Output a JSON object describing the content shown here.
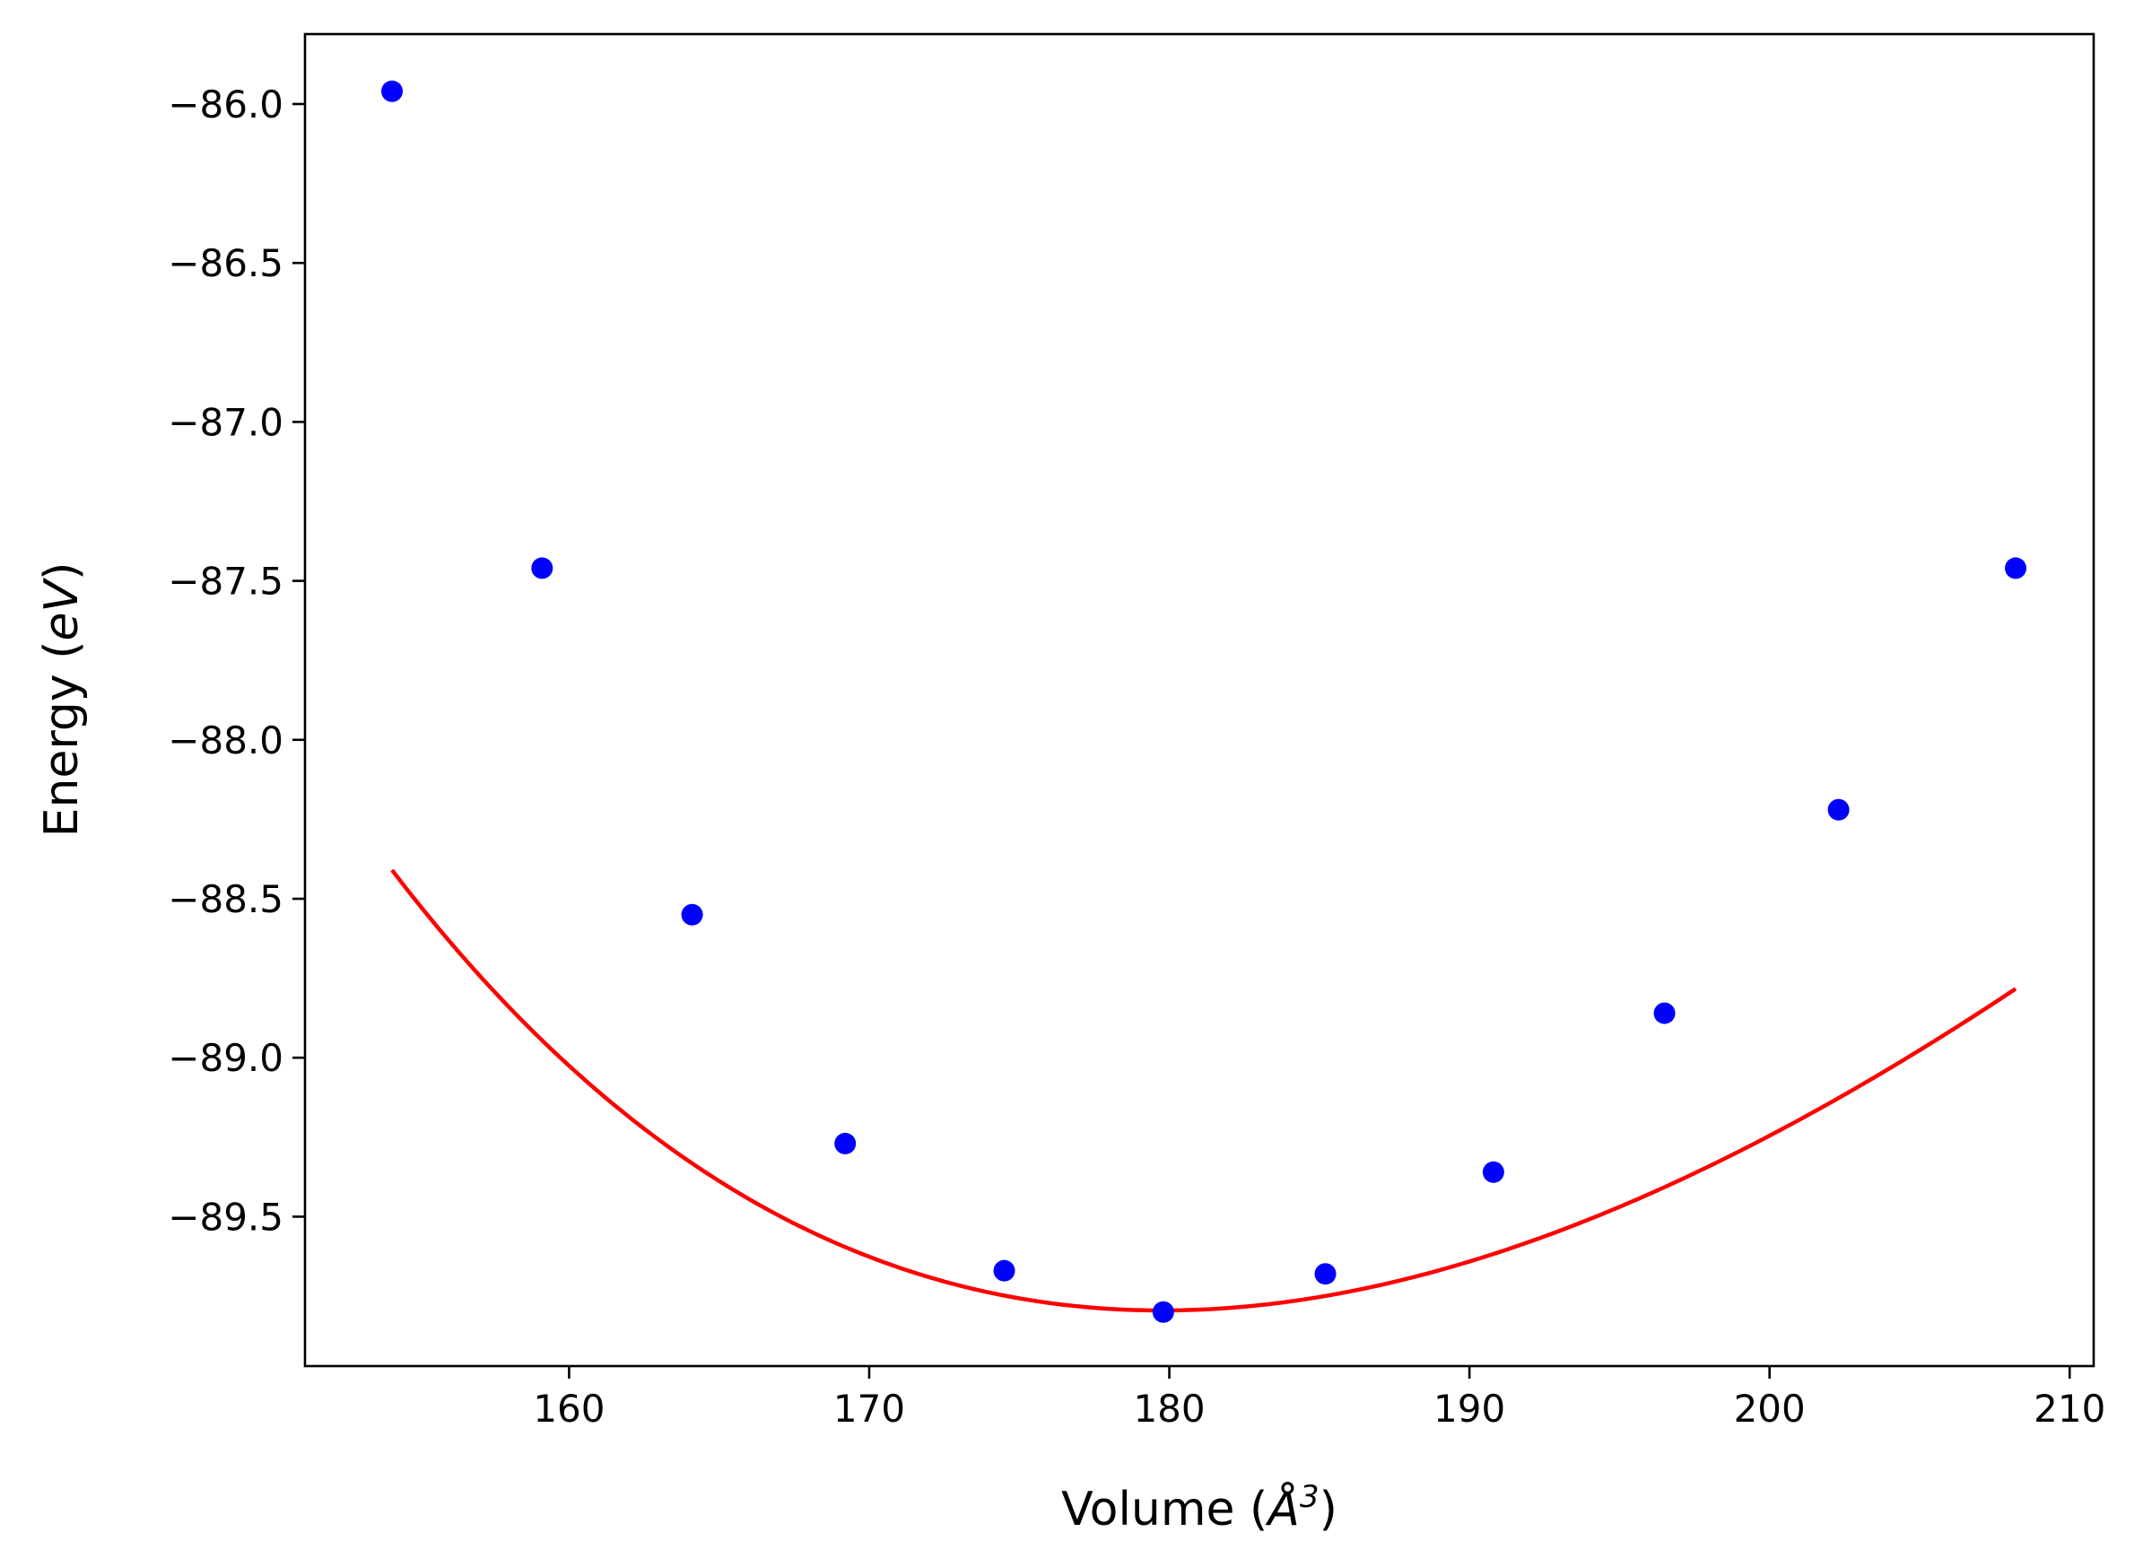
{
  "chart_data": {
    "type": "scatter",
    "title": "",
    "xlabel": {
      "text": "Volume (",
      "symbol": "Å",
      "sup": "3",
      "close": ")"
    },
    "ylabel": {
      "text": "Energy (",
      "unit": "eV",
      "close": ")"
    },
    "xlim": [
      151.2,
      210.8
    ],
    "ylim": [
      -89.97,
      -85.78
    ],
    "xticks": [
      160,
      170,
      180,
      190,
      200,
      210
    ],
    "yticks": [
      -86.0,
      -86.5,
      -87.0,
      -87.5,
      -88.0,
      -88.5,
      -89.0,
      -89.5
    ],
    "xtick_labels": [
      "160",
      "170",
      "180",
      "190",
      "200",
      "210"
    ],
    "ytick_labels": [
      "−86.0",
      "−86.5",
      "−87.0",
      "−87.5",
      "−88.0",
      "−88.5",
      "−89.0",
      "−89.5"
    ],
    "grid": false,
    "series": [
      {
        "kind": "points",
        "color": "#0000ff",
        "x": [
          154.1,
          159.1,
          164.1,
          169.2,
          174.5,
          179.8,
          185.2,
          190.8,
          196.5,
          202.3,
          208.2
        ],
        "y": [
          -85.96,
          -87.46,
          -88.55,
          -89.27,
          -89.67,
          -89.8,
          -89.68,
          -89.36,
          -88.86,
          -88.22,
          -87.46
        ]
      },
      {
        "kind": "fit-line",
        "color": "#ff0000",
        "curve": "birch-murnaghan",
        "E0": -89.795,
        "V0": 179.75,
        "B0": 0.58,
        "B0_prime": 4.2,
        "x_range": [
          154.1,
          208.2
        ]
      }
    ]
  }
}
